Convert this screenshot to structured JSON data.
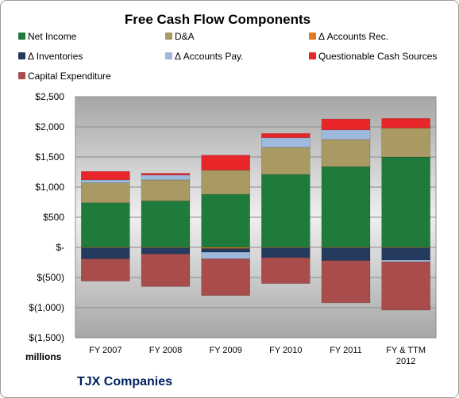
{
  "chart_data": {
    "type": "bar",
    "stacked": true,
    "title": "Free Cash Flow Components",
    "units_label": "millions",
    "company": "TJX Companies",
    "categories": [
      "FY 2007",
      "FY 2008",
      "FY 2009",
      "FY 2010",
      "FY 2011",
      "FY & TTM 2012"
    ],
    "ylim": [
      -1500,
      2500
    ],
    "yticks": [
      2500,
      2000,
      1500,
      1000,
      500,
      0,
      -500,
      -1000,
      -1500
    ],
    "ytick_labels": [
      "$2,500",
      "$2,000",
      "$1,500",
      "$1,000",
      "$500",
      "$-",
      "$(500)",
      "$(1,000)",
      "$(1,500)"
    ],
    "legend_position": "top",
    "grid": true,
    "series": [
      {
        "name": "Net Income",
        "color": "#1e7b3c",
        "values": [
          740,
          770,
          880,
          1210,
          1340,
          1500
        ]
      },
      {
        "name": "D&A",
        "color": "#a89a62",
        "values": [
          330,
          350,
          400,
          450,
          450,
          480
        ]
      },
      {
        "name": "Δ Accounts Rec.",
        "color": "#e07b1f",
        "values": [
          -10,
          -10,
          -20,
          -10,
          -10,
          -10
        ]
      },
      {
        "name": "Δ Inventories",
        "color": "#243a5e",
        "values": [
          -180,
          -100,
          -60,
          -160,
          -210,
          -200
        ]
      },
      {
        "name": "Δ Accounts Pay.",
        "color": "#9fb9dd",
        "values": [
          50,
          80,
          -110,
          160,
          160,
          -30
        ]
      },
      {
        "name": "Questionable Cash Sources",
        "color": "#e8262a",
        "values": [
          140,
          30,
          250,
          70,
          180,
          160
        ]
      },
      {
        "name": "Capital Expenditure",
        "color": "#a94c4c",
        "values": [
          -370,
          -540,
          -610,
          -430,
          -700,
          -800
        ]
      }
    ]
  }
}
